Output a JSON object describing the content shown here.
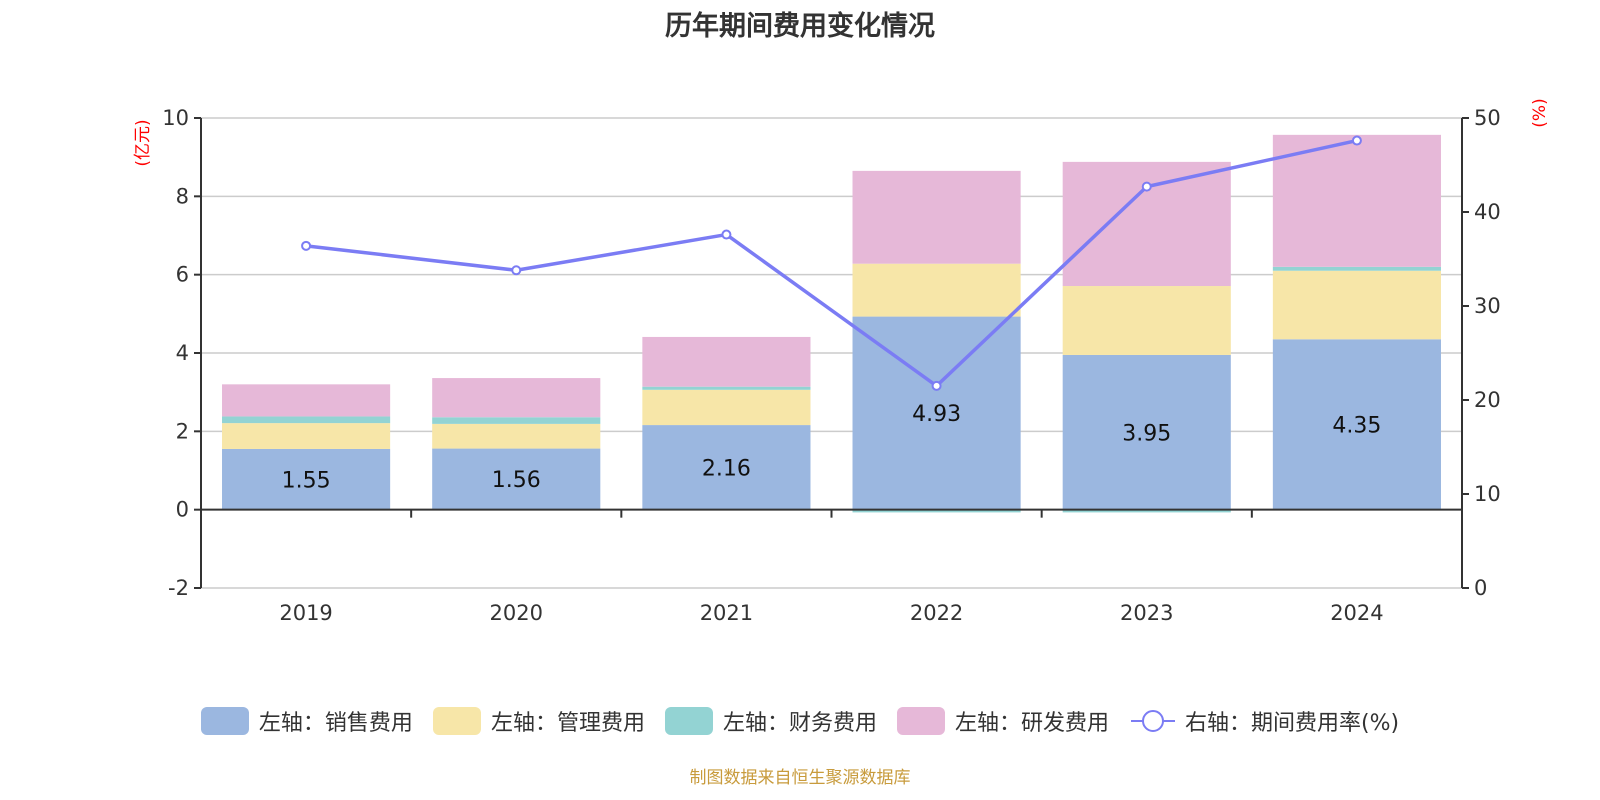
{
  "title": "历年期间费用变化情况",
  "source_note": "制图数据来自恒生聚源数据库",
  "left_axis_unit": "(亿元)",
  "right_axis_unit": "(%)",
  "colors": {
    "sales": "#9bb7e0",
    "admin": "#f7e6a8",
    "finance": "#93d3d3",
    "rnd": "#e6b8d8",
    "rate_line": "#7b7cf4"
  },
  "legend": [
    {
      "key": "sales",
      "label": "左轴：销售费用",
      "type": "bar"
    },
    {
      "key": "admin",
      "label": "左轴：管理费用",
      "type": "bar"
    },
    {
      "key": "finance",
      "label": "左轴：财务费用",
      "type": "bar"
    },
    {
      "key": "rnd",
      "label": "左轴：研发费用",
      "type": "bar"
    },
    {
      "key": "rate",
      "label": "右轴：期间费用率(%)",
      "type": "line"
    }
  ],
  "chart_data": {
    "type": "bar",
    "stacked": true,
    "title": "历年期间费用变化情况",
    "categories": [
      "2019",
      "2020",
      "2021",
      "2022",
      "2023",
      "2024"
    ],
    "series": [
      {
        "name": "左轴：销售费用",
        "key": "sales",
        "axis": "left",
        "values": [
          1.55,
          1.56,
          2.16,
          4.93,
          3.95,
          4.35
        ],
        "labels": [
          "1.55",
          "1.56",
          "2.16",
          "4.93",
          "3.95",
          "4.35"
        ]
      },
      {
        "name": "左轴：管理费用",
        "key": "admin",
        "axis": "left",
        "values": [
          0.66,
          0.63,
          0.9,
          1.35,
          1.76,
          1.75
        ]
      },
      {
        "name": "左轴：财务费用",
        "key": "finance",
        "axis": "left",
        "values": [
          0.17,
          0.17,
          0.08,
          -0.07,
          -0.07,
          0.1
        ]
      },
      {
        "name": "左轴：研发费用",
        "key": "rnd",
        "axis": "left",
        "values": [
          0.82,
          1.0,
          1.27,
          2.37,
          3.17,
          3.37
        ]
      },
      {
        "name": "右轴：期间费用率(%)",
        "key": "rate",
        "axis": "right",
        "type": "line",
        "values": [
          36.4,
          33.8,
          37.6,
          21.5,
          42.7,
          47.6
        ]
      }
    ],
    "left_axis": {
      "label": "(亿元)",
      "ylim": [
        -2,
        10
      ],
      "ticks": [
        -2,
        0,
        2,
        4,
        6,
        8,
        10
      ]
    },
    "right_axis": {
      "label": "(%)",
      "ylim": [
        0,
        50
      ],
      "ticks": [
        0,
        10,
        20,
        30,
        40,
        50
      ]
    },
    "grid": true,
    "legend_position": "bottom"
  }
}
